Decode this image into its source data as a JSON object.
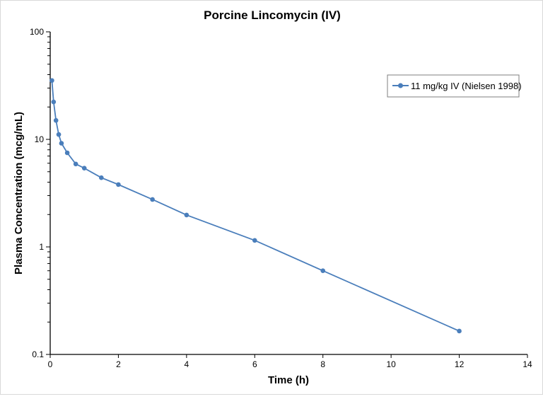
{
  "chart_data": {
    "type": "line",
    "title": "Porcine Lincomycin (IV)",
    "xlabel": "Time (h)",
    "ylabel": "Plasma Concentration (mcg/mL)",
    "xlim": [
      0,
      14
    ],
    "ylim": [
      0.1,
      100
    ],
    "yscale": "log",
    "x_ticks": [
      "0",
      "2",
      "4",
      "6",
      "8",
      "10",
      "12",
      "14"
    ],
    "y_ticks": [
      "0.1",
      "1",
      "10",
      "100"
    ],
    "grid": false,
    "legend_position": "top-right",
    "series": [
      {
        "name": "11 mg/kg IV (Nielsen 1998)",
        "color": "#4a7ebb",
        "x": [
          0.05,
          0.1,
          0.17,
          0.25,
          0.33,
          0.5,
          0.75,
          1,
          1.5,
          2,
          3,
          4,
          6,
          8,
          12
        ],
        "y": [
          35.3,
          22.3,
          15.0,
          11.1,
          9.2,
          7.5,
          5.9,
          5.4,
          4.4,
          3.8,
          2.76,
          1.98,
          1.15,
          0.6,
          0.165
        ]
      }
    ]
  }
}
